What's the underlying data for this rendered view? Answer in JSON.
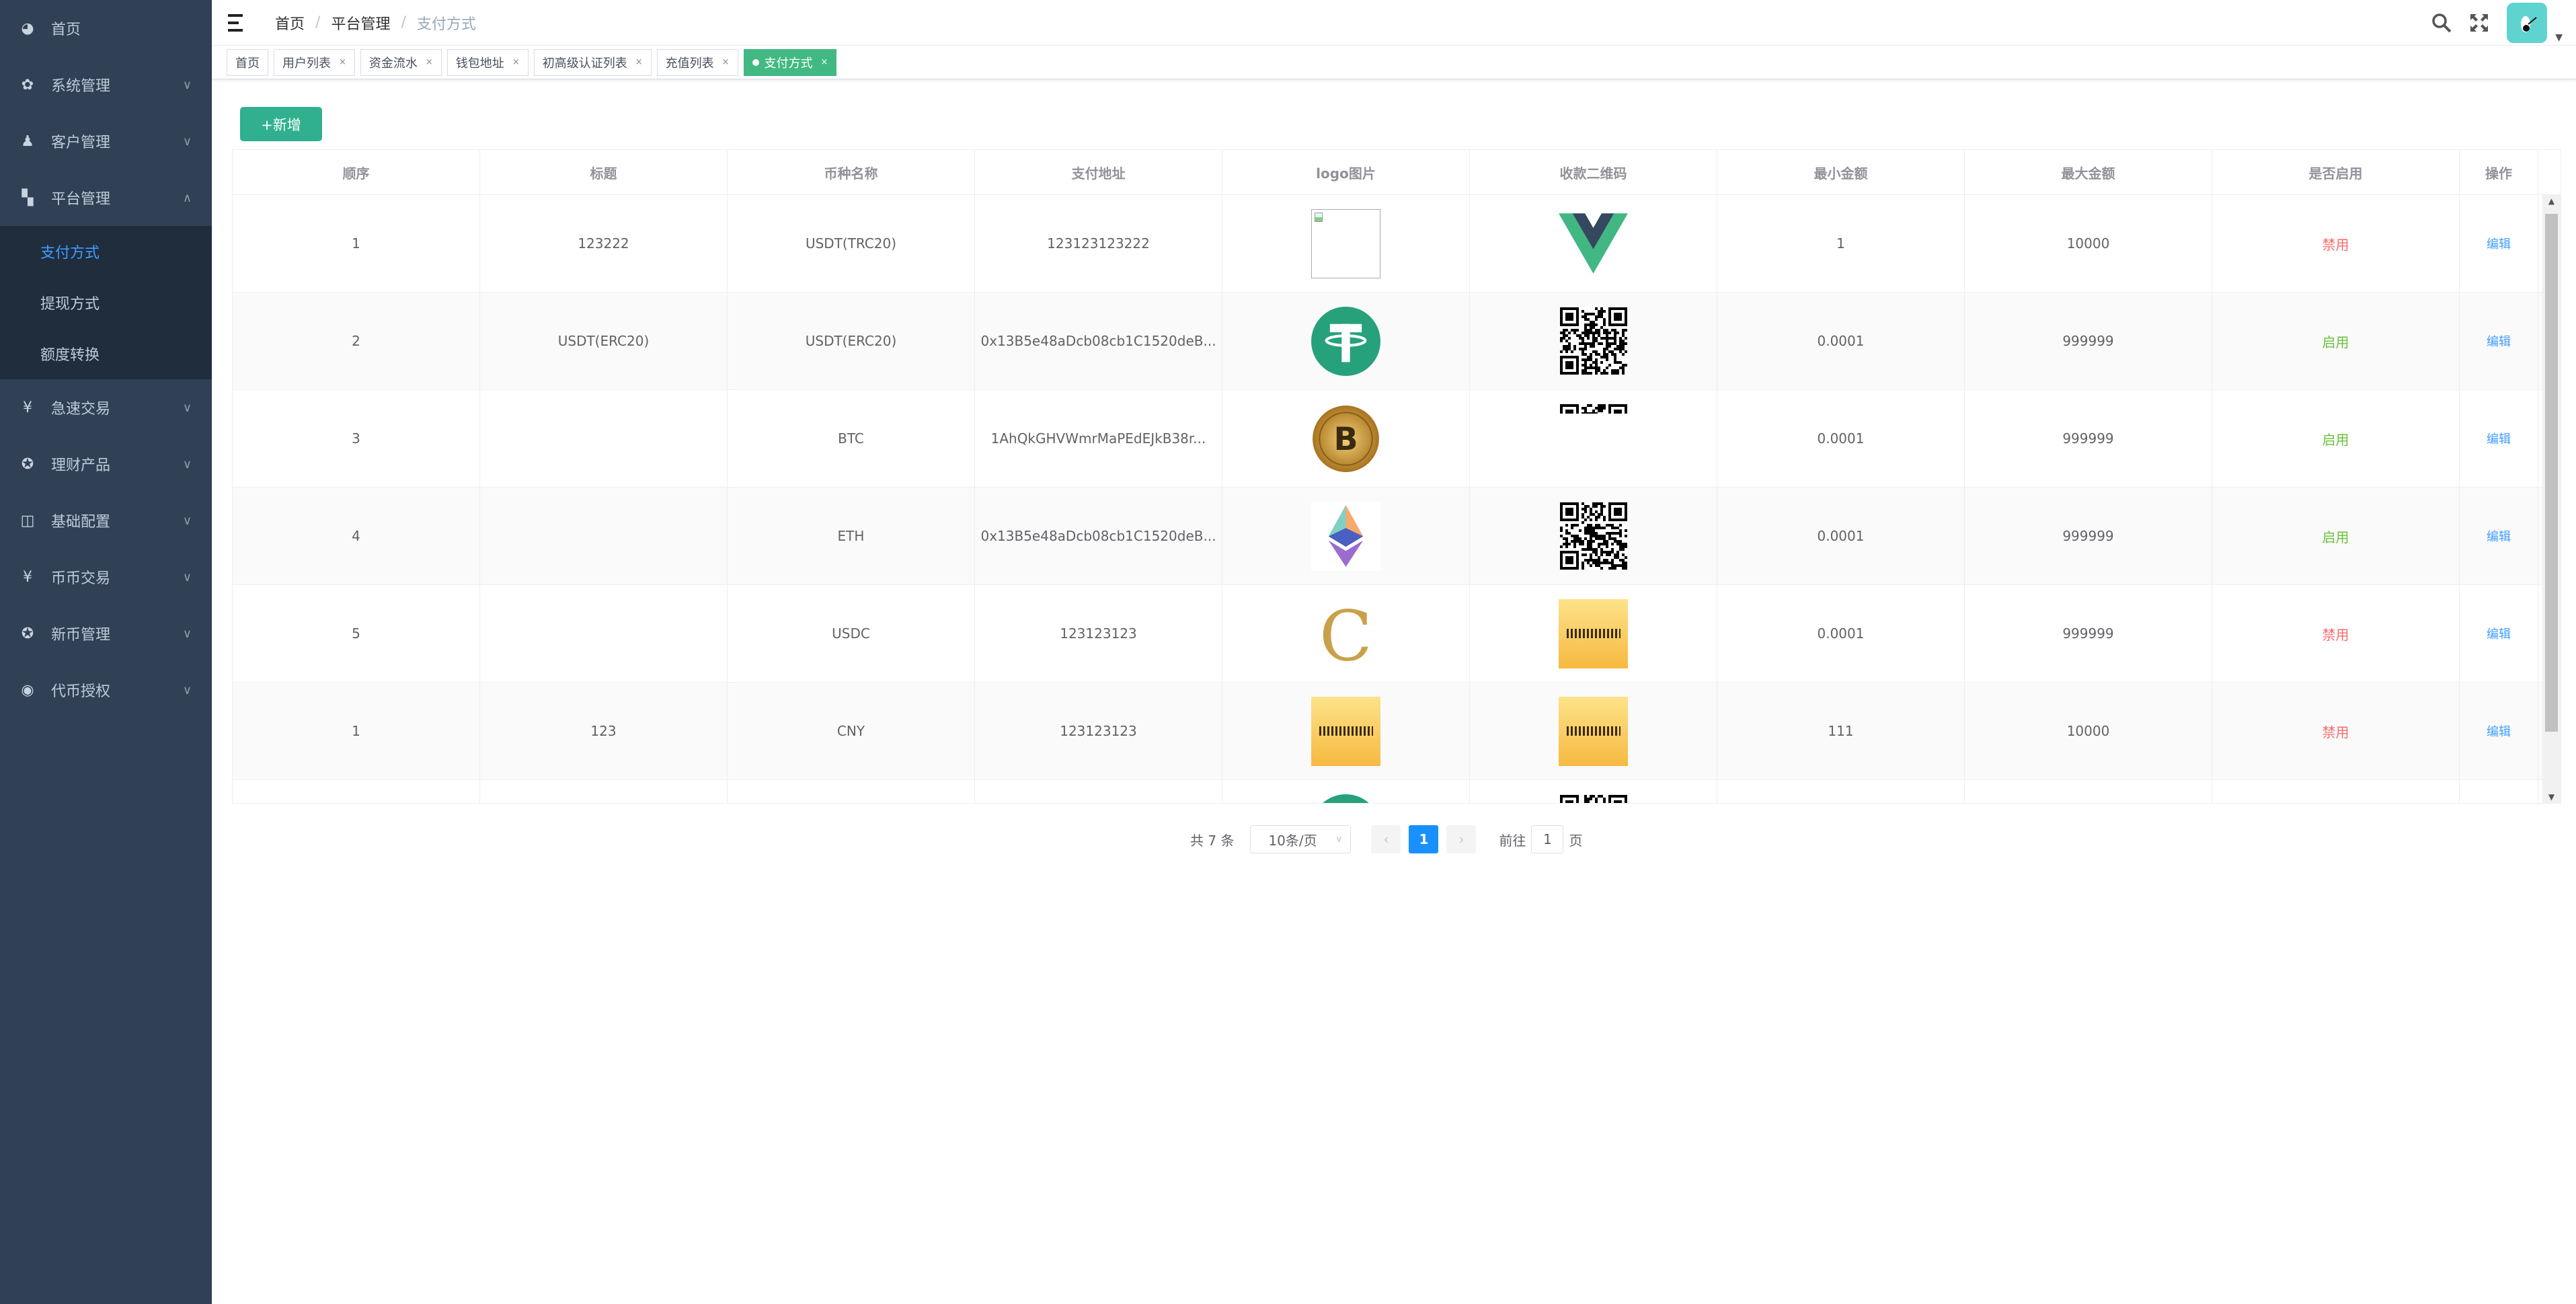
{
  "sidebar": {
    "items": [
      {
        "label": "首页",
        "icon": "dashboard-icon"
      },
      {
        "label": "系统管理",
        "icon": "gear-icon",
        "chev": "∨"
      },
      {
        "label": "客户管理",
        "icon": "user-icon",
        "chev": "∨"
      },
      {
        "label": "平台管理",
        "icon": "grid-icon",
        "chev": "∧",
        "open": true,
        "children": [
          {
            "label": "支付方式",
            "active": true
          },
          {
            "label": "提现方式"
          },
          {
            "label": "额度转换"
          }
        ]
      },
      {
        "label": "急速交易",
        "icon": "yen-icon",
        "chev": "∨"
      },
      {
        "label": "理财产品",
        "icon": "circle-icon",
        "chev": "∨"
      },
      {
        "label": "基础配置",
        "icon": "book-icon",
        "chev": "∨"
      },
      {
        "label": "币币交易",
        "icon": "yen-icon",
        "chev": "∨"
      },
      {
        "label": "新币管理",
        "icon": "circle-icon",
        "chev": "∨"
      },
      {
        "label": "代币授权",
        "icon": "token-icon",
        "chev": "∨"
      }
    ]
  },
  "breadcrumb": [
    "首页",
    "平台管理",
    "支付方式"
  ],
  "tags": [
    {
      "label": "首页",
      "closable": false
    },
    {
      "label": "用户列表",
      "closable": true
    },
    {
      "label": "资金流水",
      "closable": true
    },
    {
      "label": "钱包地址",
      "closable": true
    },
    {
      "label": "初高级认证列表",
      "closable": true
    },
    {
      "label": "充值列表",
      "closable": true
    },
    {
      "label": "支付方式",
      "closable": true,
      "active": true
    }
  ],
  "toolbar": {
    "add_label": "+新增"
  },
  "table": {
    "columns": [
      "顺序",
      "标题",
      "币种名称",
      "支付地址",
      "logo图片",
      "收款二维码",
      "最小金额",
      "最大金额",
      "是否启用",
      "操作"
    ],
    "rows": [
      {
        "order": "1",
        "title": "123222",
        "coin": "USDT(TRC20)",
        "address": "123123123222",
        "logo": "broken-image-icon",
        "qr": "vue-logo-icon",
        "min": "1",
        "max": "10000",
        "status": "禁用",
        "enabled": false,
        "action": "编辑"
      },
      {
        "order": "2",
        "title": "USDT(ERC20)",
        "coin": "USDT(ERC20)",
        "address": "0x13B5e48aDcb08cb1C1520deB...",
        "logo": "tether-icon",
        "qr": "qr-code-icon",
        "min": "0.0001",
        "max": "999999",
        "status": "启用",
        "enabled": true,
        "action": "编辑"
      },
      {
        "order": "3",
        "title": "",
        "coin": "BTC",
        "address": "1AhQkGHVWmrMaPEdEJkB38r...",
        "logo": "bitcoin-icon",
        "qr": "qr-code-cropped-icon",
        "min": "0.0001",
        "max": "999999",
        "status": "启用",
        "enabled": true,
        "action": "编辑"
      },
      {
        "order": "4",
        "title": "",
        "coin": "ETH",
        "address": "0x13B5e48aDcb08cb1C1520deB...",
        "logo": "ethereum-icon",
        "qr": "qr-code-icon",
        "min": "0.0001",
        "max": "999999",
        "status": "启用",
        "enabled": true,
        "action": "编辑"
      },
      {
        "order": "5",
        "title": "",
        "coin": "USDC",
        "address": "123123123",
        "logo": "letter-c-icon",
        "qr": "yellow-image-icon",
        "min": "0.0001",
        "max": "999999",
        "status": "禁用",
        "enabled": false,
        "action": "编辑"
      },
      {
        "order": "1",
        "title": "123",
        "coin": "CNY",
        "address": "123123123",
        "logo": "yellow-image-icon",
        "qr": "yellow-image-icon",
        "min": "111",
        "max": "10000",
        "status": "禁用",
        "enabled": false,
        "action": "编辑"
      },
      {
        "order": "",
        "title": "",
        "coin": "",
        "address": "",
        "logo": "tether-icon",
        "qr": "qr-code-icon",
        "min": "",
        "max": "",
        "status": "",
        "enabled": null,
        "action": ""
      }
    ]
  },
  "pagination": {
    "total": "共 7 条",
    "page_size": "10条/页",
    "current": "1",
    "goto_label": "前往",
    "goto_value": "1",
    "page_suffix": "页"
  },
  "colors": {
    "sidebar": "#304156",
    "accent": "#42b983",
    "primary": "#1890ff",
    "enabled": "#67c23a",
    "disabled": "#f56c6c"
  }
}
